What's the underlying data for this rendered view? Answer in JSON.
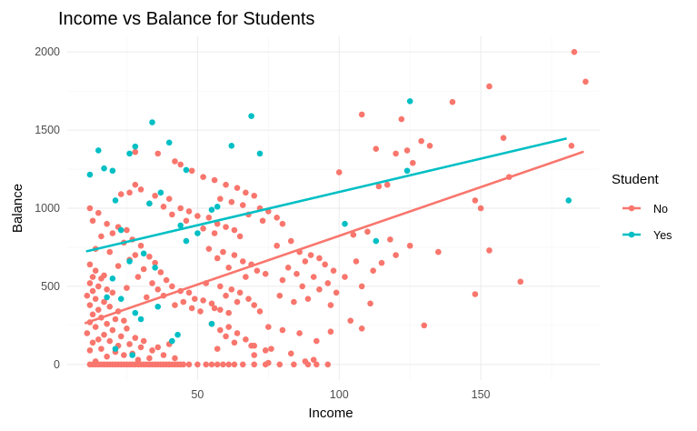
{
  "chart_data": {
    "type": "scatter",
    "title": "Income vs Balance for Students",
    "xlabel": "Income",
    "ylabel": "Balance",
    "xlim": [
      4,
      192
    ],
    "ylim": [
      -100,
      2100
    ],
    "x_ticks": [
      50,
      100,
      150
    ],
    "y_ticks": [
      0,
      500,
      1000,
      1500,
      2000
    ],
    "grid": true,
    "legend": {
      "title": "Student",
      "position": "right"
    },
    "series": [
      {
        "name": "No",
        "color": "#F8766D",
        "trend": {
          "x": [
            10.5,
            186
          ],
          "y": [
            265,
            1360
          ]
        },
        "points": [
          [
            12,
            640
          ],
          [
            14,
            600
          ],
          [
            13,
            560
          ],
          [
            16,
            550
          ],
          [
            12,
            520
          ],
          [
            15,
            500
          ],
          [
            18,
            480
          ],
          [
            13,
            470
          ],
          [
            20,
            460
          ],
          [
            11,
            440
          ],
          [
            14,
            420
          ],
          [
            17,
            400
          ],
          [
            12,
            380
          ],
          [
            19,
            370
          ],
          [
            15,
            350
          ],
          [
            22,
            340
          ],
          [
            13,
            320
          ],
          [
            16,
            300
          ],
          [
            21,
            290
          ],
          [
            24,
            280
          ],
          [
            12,
            270
          ],
          [
            18,
            260
          ],
          [
            14,
            240
          ],
          [
            25,
            230
          ],
          [
            20,
            220
          ],
          [
            11,
            200
          ],
          [
            17,
            190
          ],
          [
            23,
            180
          ],
          [
            28,
            170
          ],
          [
            15,
            160
          ],
          [
            19,
            150
          ],
          [
            13,
            140
          ],
          [
            26,
            130
          ],
          [
            22,
            120
          ],
          [
            30,
            110
          ],
          [
            16,
            100
          ],
          [
            12,
            90
          ],
          [
            21,
            80
          ],
          [
            27,
            70
          ],
          [
            24,
            60
          ],
          [
            18,
            50
          ],
          [
            33,
            40
          ],
          [
            29,
            30
          ],
          [
            14,
            20
          ],
          [
            36,
            110
          ],
          [
            31,
            150
          ],
          [
            40,
            130
          ],
          [
            34,
            90
          ],
          [
            38,
            60
          ],
          [
            42,
            40
          ],
          [
            12,
            1000
          ],
          [
            15,
            970
          ],
          [
            13,
            920
          ],
          [
            18,
            900
          ],
          [
            22,
            880
          ],
          [
            25,
            860
          ],
          [
            20,
            840
          ],
          [
            16,
            820
          ],
          [
            27,
            800
          ],
          [
            24,
            780
          ],
          [
            30,
            760
          ],
          [
            14,
            740
          ],
          [
            19,
            720
          ],
          [
            28,
            700
          ],
          [
            33,
            690
          ],
          [
            26,
            670
          ],
          [
            35,
            650
          ],
          [
            22,
            630
          ],
          [
            31,
            610
          ],
          [
            37,
            590
          ],
          [
            17,
            570
          ],
          [
            29,
            560
          ],
          [
            39,
            540
          ],
          [
            34,
            520
          ],
          [
            41,
            500
          ],
          [
            25,
            490
          ],
          [
            36,
            480
          ],
          [
            44,
            470
          ],
          [
            47,
            460
          ],
          [
            38,
            440
          ],
          [
            32,
            430
          ],
          [
            49,
            420
          ],
          [
            52,
            410
          ],
          [
            45,
            400
          ],
          [
            55,
            390
          ],
          [
            42,
            380
          ],
          [
            48,
            360
          ],
          [
            58,
            350
          ],
          [
            51,
            340
          ],
          [
            61,
            330
          ],
          [
            26,
            1100
          ],
          [
            30,
            1120
          ],
          [
            23,
            1090
          ],
          [
            35,
            1080
          ],
          [
            28,
            1150
          ],
          [
            40,
            1060
          ],
          [
            33,
            1030
          ],
          [
            38,
            1010
          ],
          [
            44,
            1000
          ],
          [
            47,
            980
          ],
          [
            41,
            960
          ],
          [
            50,
            950
          ],
          [
            54,
            940
          ],
          [
            46,
            920
          ],
          [
            57,
            900
          ],
          [
            60,
            880
          ],
          [
            52,
            870
          ],
          [
            63,
            860
          ],
          [
            56,
            840
          ],
          [
            65,
            820
          ],
          [
            36,
            1350
          ],
          [
            28,
            1360
          ],
          [
            42,
            1300
          ],
          [
            44,
            1280
          ],
          [
            48,
            1240
          ],
          [
            52,
            1200
          ],
          [
            56,
            1180
          ],
          [
            60,
            1150
          ],
          [
            64,
            1130
          ],
          [
            67,
            1100
          ],
          [
            70,
            1080
          ],
          [
            58,
            1060
          ],
          [
            62,
            1040
          ],
          [
            66,
            1020
          ],
          [
            72,
            1000
          ],
          [
            75,
            980
          ],
          [
            68,
            960
          ],
          [
            78,
            940
          ],
          [
            73,
            920
          ],
          [
            80,
            900
          ],
          [
            54,
            740
          ],
          [
            59,
            720
          ],
          [
            63,
            700
          ],
          [
            57,
            680
          ],
          [
            66,
            660
          ],
          [
            69,
            640
          ],
          [
            61,
            620
          ],
          [
            71,
            600
          ],
          [
            74,
            580
          ],
          [
            67,
            560
          ],
          [
            53,
            520
          ],
          [
            58,
            500
          ],
          [
            62,
            480
          ],
          [
            65,
            460
          ],
          [
            60,
            440
          ],
          [
            68,
            420
          ],
          [
            64,
            400
          ],
          [
            70,
            380
          ],
          [
            56,
            360
          ],
          [
            72,
            340
          ],
          [
            55,
            260
          ],
          [
            61,
            240
          ],
          [
            58,
            220
          ],
          [
            64,
            200
          ],
          [
            60,
            180
          ],
          [
            67,
            160
          ],
          [
            63,
            140
          ],
          [
            70,
            120
          ],
          [
            57,
            100
          ],
          [
            74,
            90
          ],
          [
            78,
            760
          ],
          [
            83,
            790
          ],
          [
            86,
            720
          ],
          [
            90,
            700
          ],
          [
            93,
            680
          ],
          [
            88,
            660
          ],
          [
            95,
            640
          ],
          [
            82,
            620
          ],
          [
            98,
            600
          ],
          [
            85,
            580
          ],
          [
            91,
            560
          ],
          [
            80,
            540
          ],
          [
            96,
            520
          ],
          [
            87,
            500
          ],
          [
            93,
            480
          ],
          [
            99,
            460
          ],
          [
            79,
            440
          ],
          [
            89,
            420
          ],
          [
            84,
            400
          ],
          [
            97,
            380
          ],
          [
            100,
            1230
          ],
          [
            108,
            1600
          ],
          [
            122,
            1570
          ],
          [
            124,
            1370
          ],
          [
            129,
            1430
          ],
          [
            132,
            1400
          ],
          [
            120,
            1350
          ],
          [
            113,
            1380
          ],
          [
            126,
            1290
          ],
          [
            117,
            1150
          ],
          [
            114,
            1140
          ],
          [
            140,
            1680
          ],
          [
            153,
            1780
          ],
          [
            158,
            1450
          ],
          [
            182,
            1400
          ],
          [
            183,
            2000
          ],
          [
            187,
            1810
          ],
          [
            160,
            1200
          ],
          [
            148,
            1050
          ],
          [
            150,
            1000
          ],
          [
            110,
            850
          ],
          [
            105,
            830
          ],
          [
            118,
            800
          ],
          [
            125,
            760
          ],
          [
            135,
            720
          ],
          [
            153,
            730
          ],
          [
            106,
            660
          ],
          [
            115,
            650
          ],
          [
            120,
            700
          ],
          [
            112,
            600
          ],
          [
            102,
            560
          ],
          [
            108,
            500
          ],
          [
            111,
            390
          ],
          [
            104,
            280
          ],
          [
            130,
            250
          ],
          [
            148,
            450
          ],
          [
            164,
            530
          ],
          [
            108,
            230
          ],
          [
            97,
            210
          ],
          [
            80,
            220
          ],
          [
            75,
            240
          ],
          [
            86,
            200
          ],
          [
            92,
            150
          ],
          [
            69,
            120
          ],
          [
            76,
            100
          ],
          [
            83,
            70
          ],
          [
            70,
            60
          ],
          [
            91,
            30
          ],
          [
            88,
            20
          ],
          [
            75,
            10
          ],
          [
            12,
            0
          ],
          [
            13,
            0
          ],
          [
            14,
            0
          ],
          [
            15,
            0
          ],
          [
            16,
            0
          ],
          [
            17,
            0
          ],
          [
            18,
            0
          ],
          [
            19,
            0
          ],
          [
            20,
            0
          ],
          [
            21,
            0
          ],
          [
            22,
            0
          ],
          [
            23,
            0
          ],
          [
            24,
            0
          ],
          [
            25,
            0
          ],
          [
            26,
            0
          ],
          [
            27,
            0
          ],
          [
            28,
            0
          ],
          [
            29,
            0
          ],
          [
            30,
            0
          ],
          [
            31,
            0
          ],
          [
            32,
            0
          ],
          [
            33,
            0
          ],
          [
            34,
            0
          ],
          [
            35,
            0
          ],
          [
            36,
            0
          ],
          [
            37,
            0
          ],
          [
            38,
            0
          ],
          [
            39,
            0
          ],
          [
            40,
            0
          ],
          [
            41,
            0
          ],
          [
            42,
            0
          ],
          [
            43,
            0
          ],
          [
            44,
            0
          ],
          [
            45,
            0
          ],
          [
            47,
            0
          ],
          [
            50,
            0
          ],
          [
            53,
            0
          ],
          [
            55,
            0
          ],
          [
            57,
            0
          ],
          [
            59,
            0
          ],
          [
            61,
            0
          ],
          [
            63,
            0
          ],
          [
            66,
            0
          ],
          [
            70,
            0
          ],
          [
            74,
            0
          ],
          [
            79,
            0
          ],
          [
            84,
            0
          ],
          [
            89,
            0
          ],
          [
            92,
            0
          ],
          [
            96,
            0
          ]
        ]
      },
      {
        "name": "Yes",
        "color": "#00BFC4",
        "trend": {
          "x": [
            11,
            180
          ],
          "y": [
            725,
            1445
          ]
        },
        "points": [
          [
            12,
            1215
          ],
          [
            15,
            1370
          ],
          [
            17,
            1255
          ],
          [
            20,
            1240
          ],
          [
            26,
            1350
          ],
          [
            28,
            1395
          ],
          [
            34,
            1550
          ],
          [
            40,
            1420
          ],
          [
            46,
            1245
          ],
          [
            62,
            1400
          ],
          [
            69,
            1590
          ],
          [
            72,
            1350
          ],
          [
            21,
            1050
          ],
          [
            23,
            860
          ],
          [
            33,
            1030
          ],
          [
            37,
            1100
          ],
          [
            44,
            890
          ],
          [
            46,
            790
          ],
          [
            50,
            840
          ],
          [
            55,
            990
          ],
          [
            57,
            1010
          ],
          [
            31,
            710
          ],
          [
            26,
            660
          ],
          [
            35,
            620
          ],
          [
            18,
            430
          ],
          [
            23,
            420
          ],
          [
            28,
            330
          ],
          [
            36,
            370
          ],
          [
            41,
            150
          ],
          [
            55,
            260
          ],
          [
            21,
            100
          ],
          [
            27,
            60
          ],
          [
            102,
            900
          ],
          [
            113,
            790
          ],
          [
            124,
            1240
          ],
          [
            125,
            1685
          ],
          [
            181,
            1050
          ],
          [
            43,
            190
          ],
          [
            20,
            550
          ],
          [
            30,
            290
          ]
        ]
      }
    ]
  }
}
